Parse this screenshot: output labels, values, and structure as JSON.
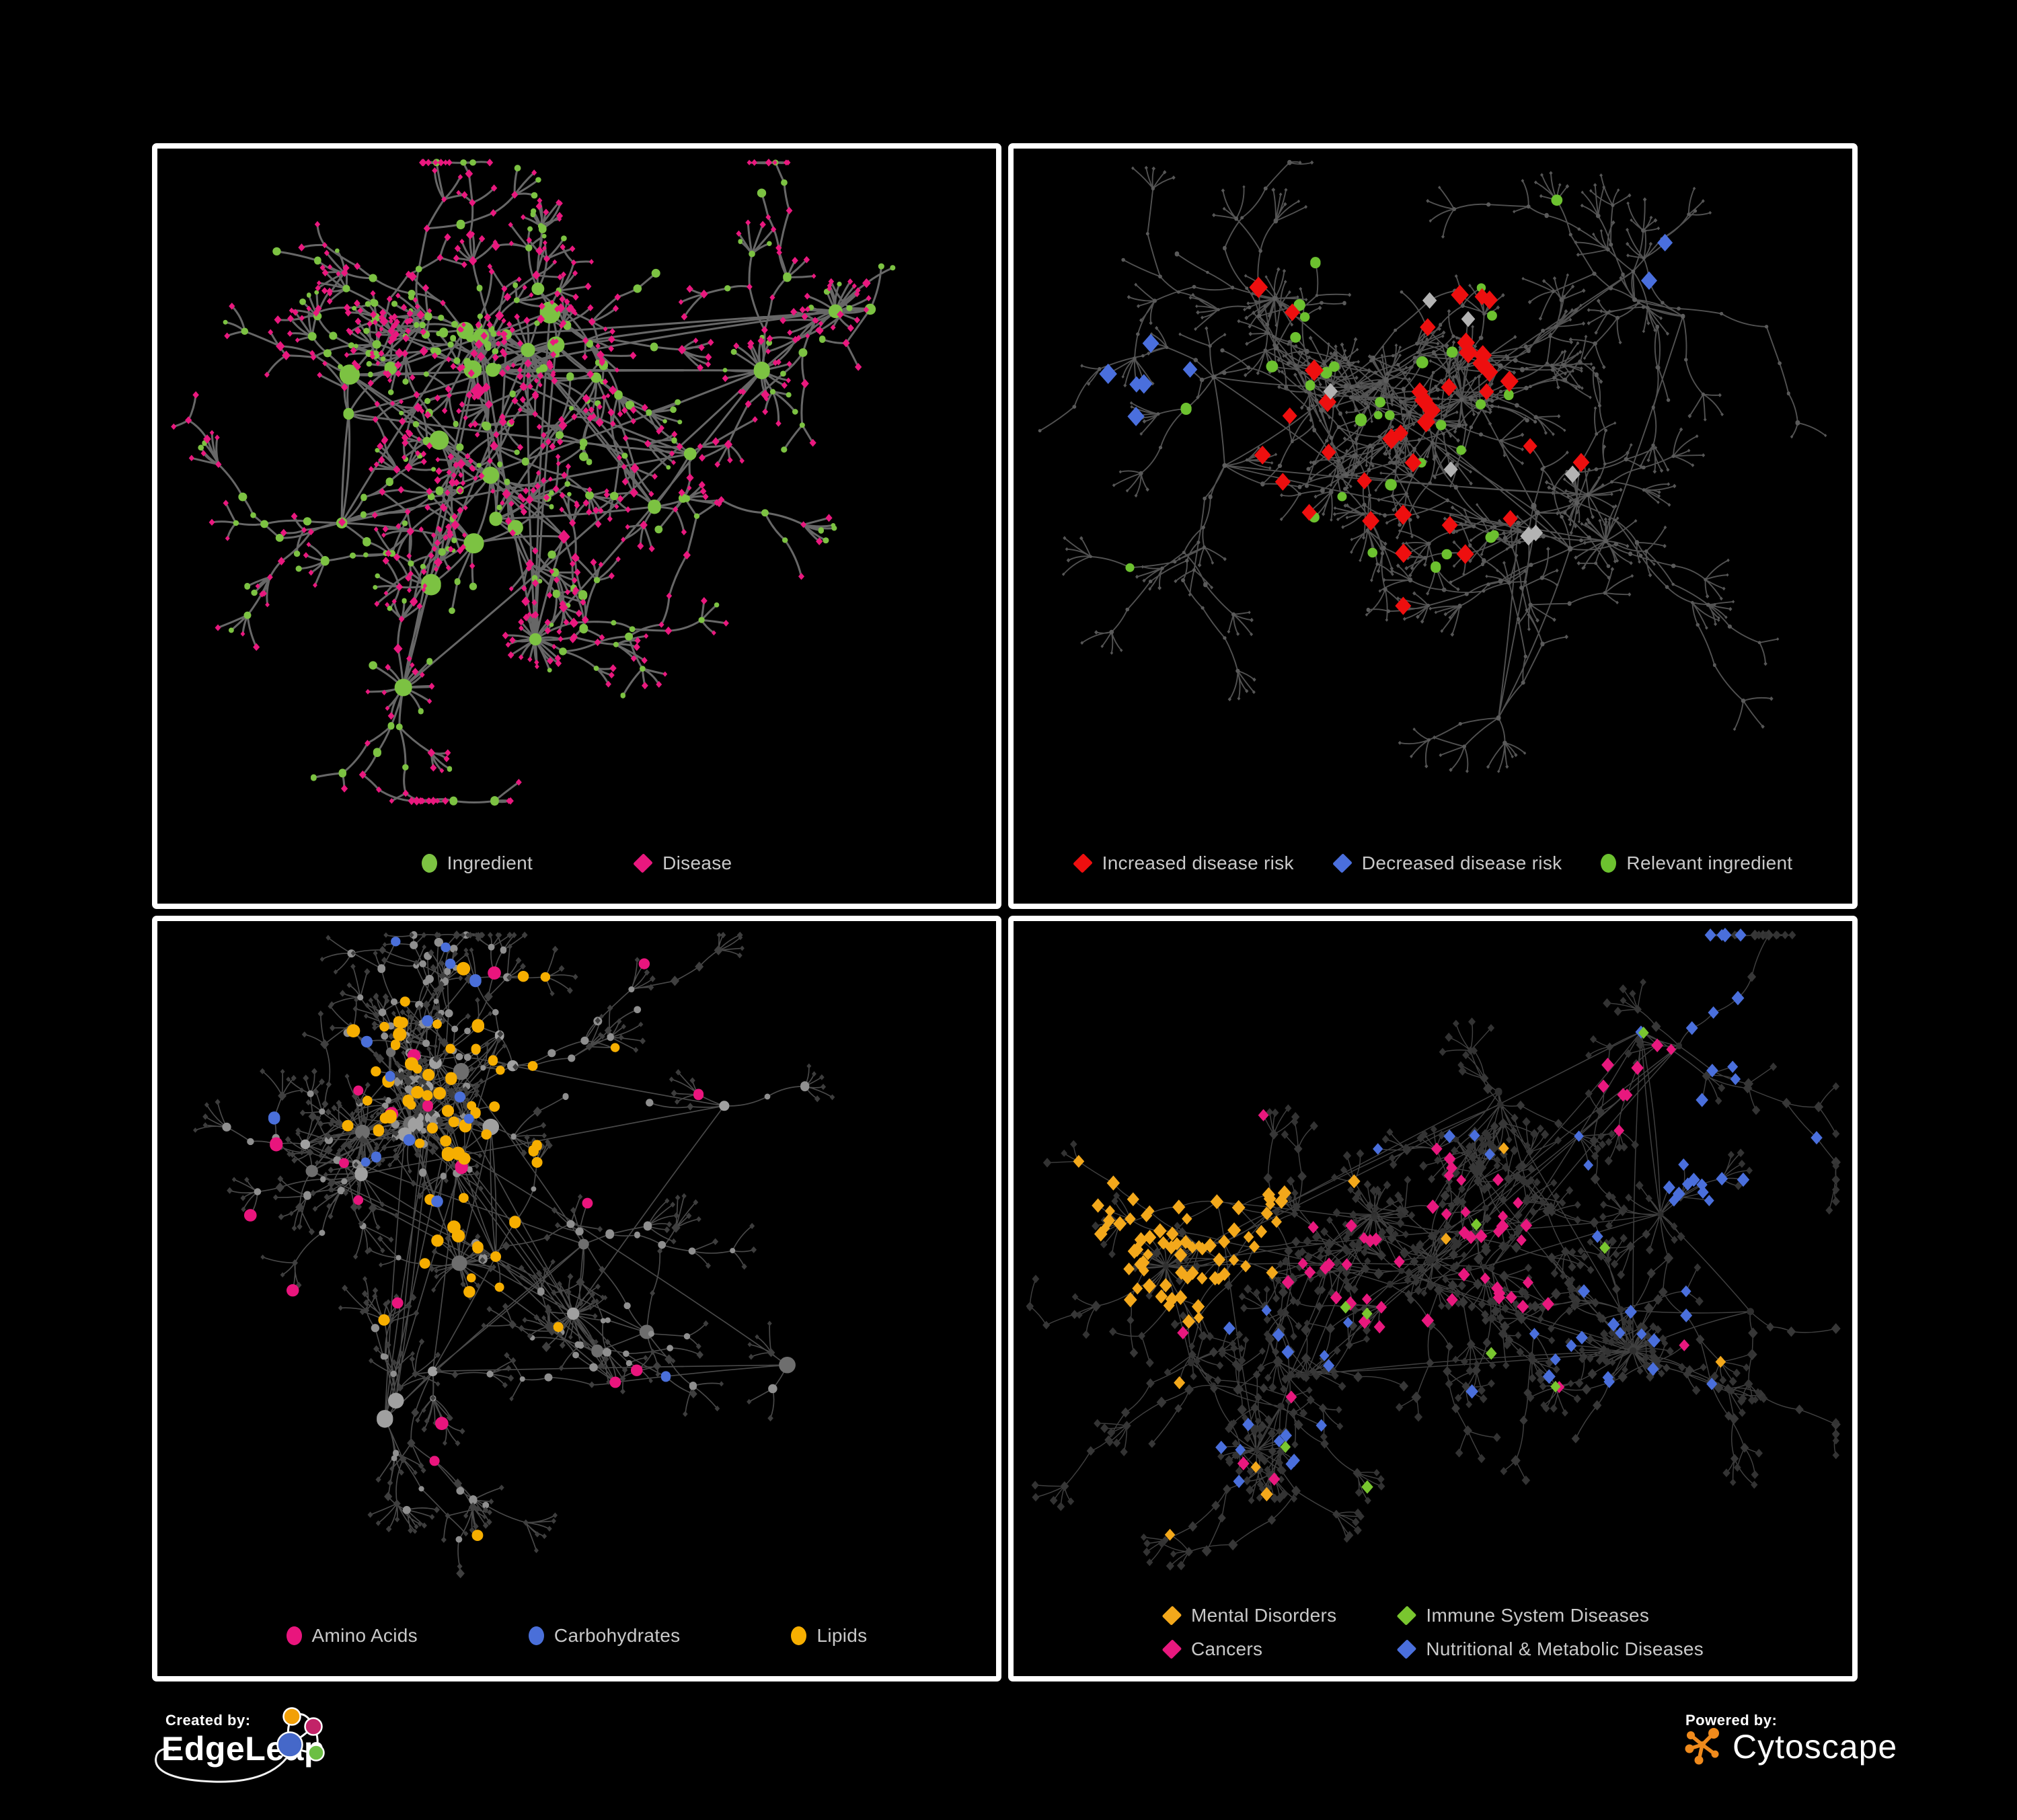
{
  "figure": {
    "background": "#000000",
    "panel_border_color": "#ffffff",
    "legend_text_color": "#c9c9c9"
  },
  "footer": {
    "created_by": "Created by:",
    "created_brand": "EdgeLeap",
    "powered_by": "Powered by:",
    "powered_brand": "Cytoscape",
    "edgeleap_logo_colors": {
      "orange": "#f2a007",
      "magenta": "#c22368",
      "blue": "#4568c9",
      "green": "#6cbf44",
      "line": "#ffffff"
    },
    "cytoscape_logo_color": "#ef8a1c"
  },
  "panels": [
    {
      "id": "ingredient-disease",
      "legend_layout": "row",
      "legend": [
        {
          "label": "Ingredient",
          "shape": "circle",
          "color": "#7cc242"
        },
        {
          "label": "Disease",
          "shape": "diamond",
          "color": "#e9187e"
        }
      ],
      "network": {
        "seed": 14,
        "hubs": 30,
        "hubSpread": 120,
        "extraEdges": 34,
        "branchMin": 2,
        "branchMax": 4,
        "leafMax": 5,
        "stars": 5,
        "foci": [
          [
            0.3,
            0.36,
            3
          ],
          [
            0.46,
            0.3,
            3
          ],
          [
            0.38,
            0.58,
            2
          ],
          [
            0.6,
            0.48,
            1.5
          ],
          [
            0.78,
            0.24,
            1.5
          ],
          [
            0.4,
            0.8,
            1
          ],
          [
            0.18,
            0.6,
            1
          ]
        ],
        "size": {
          "hub": [
            6,
            12
          ],
          "mid": [
            3.5,
            6
          ],
          "leaf": [
            3,
            4.6
          ]
        },
        "base": {
          "hub": [
            [
              "circle",
              "#7cc242",
              0.8,
              1.15
            ],
            [
              "diamond",
              "#e9187e",
              0.2,
              0.9
            ]
          ],
          "mid": [
            [
              "circle",
              "#7cc242",
              0.45,
              1
            ],
            [
              "diamond",
              "#e9187e",
              0.55,
              1
            ]
          ],
          "leaf": [
            [
              "diamond",
              "#e9187e",
              0.82,
              1
            ],
            [
              "circle",
              "#7cc242",
              0.18,
              0.95
            ]
          ]
        },
        "edge": {
          "color": "#6d6d6d",
          "width": 2.7,
          "opacity": 0.95
        },
        "rules": []
      }
    },
    {
      "id": "disease-risk",
      "legend_layout": "row",
      "legend": [
        {
          "label": "Increased disease risk",
          "shape": "diamond",
          "color": "#ee0f0f"
        },
        {
          "label": "Decreased disease risk",
          "shape": "diamond",
          "color": "#4a6fdd"
        },
        {
          "label": "Relevant ingredient",
          "shape": "circle",
          "color": "#6cc12f"
        }
      ],
      "network": {
        "seed": 47,
        "hubs": 30,
        "hubSpread": 130,
        "extraEdges": 14,
        "branchMin": 2,
        "branchMax": 4,
        "leafMax": 5,
        "stars": 7,
        "foci": [
          [
            0.4,
            0.38,
            3
          ],
          [
            0.52,
            0.3,
            2
          ],
          [
            0.3,
            0.55,
            1.5
          ],
          [
            0.65,
            0.55,
            1.5
          ],
          [
            0.8,
            0.25,
            1
          ],
          [
            0.25,
            0.25,
            1.5
          ],
          [
            0.55,
            0.75,
            1
          ]
        ],
        "size": {
          "hub": [
            2.6,
            3.6
          ],
          "mid": [
            2.0,
            3.0
          ],
          "leaf": [
            1.9,
            2.6
          ]
        },
        "base": {
          "hub": [
            [
              "circle",
              "#5e5e5e",
              1,
              1
            ]
          ],
          "mid": [
            [
              "circle",
              "#5a5a5a",
              1,
              1
            ]
          ],
          "leaf": [
            [
              "diamond",
              "#565656",
              1,
              1
            ]
          ]
        },
        "edge": {
          "color": "#555555",
          "width": 1.7,
          "opacity": 0.95
        },
        "rules": [
          {
            "shape": "diamond",
            "color": "#ee0f0f",
            "size": [
              9.5,
              13
            ],
            "count": 30,
            "focus": [
              0.44,
              0.4
            ],
            "radius": 250
          },
          {
            "shape": "diamond",
            "color": "#ee0f0f",
            "size": [
              9,
              11.5
            ],
            "count": 6,
            "focus": [
              0.62,
              0.62
            ],
            "radius": 320
          },
          {
            "shape": "diamond",
            "color": "#ee0f0f",
            "size": [
              9,
              11
            ],
            "count": 2,
            "focus": [
              0.5,
              0.17
            ],
            "radius": 140
          },
          {
            "shape": "diamond",
            "color": "#4a6fdd",
            "size": [
              9.5,
              12
            ],
            "count": 4,
            "focus": [
              0.135,
              0.33
            ],
            "radius": 90
          },
          {
            "shape": "diamond",
            "color": "#4a6fdd",
            "size": [
              10,
              11
            ],
            "count": 2,
            "focus": [
              0.8,
              0.165
            ],
            "radius": 55
          },
          {
            "shape": "diamond",
            "color": "#4a6fdd",
            "size": [
              9,
              10
            ],
            "count": 2,
            "focus": [
              0.22,
              0.4
            ],
            "radius": 110
          },
          {
            "shape": "diamond",
            "color": "#b3b3b3",
            "size": [
              9,
              11
            ],
            "count": 7,
            "focus": [
              0.42,
              0.47
            ],
            "radius": 300
          },
          {
            "shape": "circle",
            "color": "#6cc12f",
            "size": [
              6,
              8
            ],
            "count": 24,
            "focus": [
              0.4,
              0.4
            ],
            "radius": 260
          },
          {
            "shape": "circle",
            "color": "#6cc12f",
            "size": [
              5.5,
              7.5
            ],
            "count": 8,
            "focus": [
              0.5,
              0.5
            ],
            "radius": 600
          }
        ]
      }
    },
    {
      "id": "nutrient-groups",
      "legend_layout": "row",
      "legend": [
        {
          "label": "Amino Acids",
          "shape": "circle",
          "color": "#e9157d"
        },
        {
          "label": "Carbohydrates",
          "shape": "circle",
          "color": "#4a6fd9"
        },
        {
          "label": "Lipids",
          "shape": "circle",
          "color": "#f6ae00"
        }
      ],
      "network": {
        "seed": 83,
        "hubs": 30,
        "hubSpread": 120,
        "extraEdges": 44,
        "branchMin": 2,
        "branchMax": 4,
        "leafMax": 5,
        "stars": 7,
        "foci": [
          [
            0.27,
            0.33,
            3
          ],
          [
            0.36,
            0.22,
            2.5
          ],
          [
            0.42,
            0.5,
            2
          ],
          [
            0.55,
            0.62,
            1.5
          ],
          [
            0.7,
            0.3,
            1.5
          ],
          [
            0.35,
            0.78,
            1
          ],
          [
            0.75,
            0.65,
            1
          ]
        ],
        "size": {
          "hub": [
            6,
            11
          ],
          "mid": [
            3.5,
            6
          ],
          "leaf": [
            2.9,
            4.1
          ]
        },
        "base": {
          "hub": [
            [
              "circle",
              "#a0a0a0",
              0.6,
              1
            ],
            [
              "circle",
              "#6e6e6e",
              0.4,
              1
            ]
          ],
          "mid": [
            [
              "circle",
              "#8f8f8f",
              0.55,
              1
            ],
            [
              "diamond",
              "#3f3f3f",
              0.45,
              1
            ]
          ],
          "leaf": [
            [
              "diamond",
              "#3d3d3d",
              1,
              1
            ]
          ]
        },
        "edge": {
          "color": "#7a7a7a",
          "width": 1.5,
          "opacity": 0.6
        },
        "rules": [
          {
            "shape": "circle",
            "color": "#f6ae00",
            "size": [
              6,
              9
            ],
            "count": 36,
            "focus": [
              0.345,
              0.235
            ],
            "radius": 150
          },
          {
            "shape": "circle",
            "color": "#f6ae00",
            "size": [
              6,
              9
            ],
            "count": 16,
            "focus": [
              0.385,
              0.445
            ],
            "radius": 105
          },
          {
            "shape": "circle",
            "color": "#f6ae00",
            "size": [
              6,
              8.5
            ],
            "count": 14,
            "focus": [
              0.5,
              0.55
            ],
            "radius": 600
          },
          {
            "shape": "circle",
            "color": "#4a6fd9",
            "size": [
              6,
              8
            ],
            "count": 10,
            "focus": [
              0.3,
              0.175
            ],
            "radius": 140
          },
          {
            "shape": "circle",
            "color": "#4a6fd9",
            "size": [
              6,
              8
            ],
            "count": 5,
            "focus": [
              0.55,
              0.5
            ],
            "radius": 550
          },
          {
            "shape": "circle",
            "color": "#e9157d",
            "size": [
              6.5,
              9
            ],
            "count": 16,
            "focus": [
              0.5,
              0.62
            ],
            "radius": 520
          },
          {
            "shape": "circle",
            "color": "#e9157d",
            "size": [
              6.5,
              9
            ],
            "count": 3,
            "focus": [
              0.12,
              0.42
            ],
            "radius": 160
          }
        ]
      }
    },
    {
      "id": "disease-classes",
      "legend_layout": "grid",
      "legend": [
        {
          "label": "Mental Disorders",
          "shape": "diamond",
          "color": "#f3a81b"
        },
        {
          "label": "Immune System Diseases",
          "shape": "diamond",
          "color": "#79c62f"
        },
        {
          "label": "Cancers",
          "shape": "diamond",
          "color": "#e8187e"
        },
        {
          "label": "Nutritional & Metabolic Diseases",
          "shape": "diamond",
          "color": "#4a6fdc"
        }
      ],
      "network": {
        "seed": 29,
        "hubs": 30,
        "hubSpread": 125,
        "extraEdges": 30,
        "branchMin": 2,
        "branchMax": 4,
        "leafMax": 5,
        "stars": 7,
        "foci": [
          [
            0.22,
            0.44,
            3
          ],
          [
            0.48,
            0.5,
            2.5
          ],
          [
            0.6,
            0.3,
            2
          ],
          [
            0.78,
            0.55,
            1.5
          ],
          [
            0.3,
            0.72,
            1.5
          ],
          [
            0.8,
            0.12,
            1
          ],
          [
            0.6,
            0.8,
            1
          ]
        ],
        "size": {
          "hub": [
            3.6,
            5
          ],
          "mid": [
            4.8,
            6.6
          ],
          "leaf": [
            4.2,
            5.6
          ]
        },
        "base": {
          "hub": [
            [
              "circle",
              "#2f2f2f",
              1,
              1
            ]
          ],
          "mid": [
            [
              "diamond",
              "#373737",
              1,
              1
            ]
          ],
          "leaf": [
            [
              "diamond",
              "#333333",
              1,
              1
            ]
          ]
        },
        "edge": {
          "color": "#8d8d8d",
          "width": 1.3,
          "opacity": 0.45
        },
        "rules": [
          {
            "shape": "diamond",
            "color": "#f3a81b",
            "size": [
              6.5,
              9
            ],
            "count": 72,
            "focus": [
              0.185,
              0.44
            ],
            "radius": 155
          },
          {
            "shape": "diamond",
            "color": "#f3a81b",
            "size": [
              6.5,
              9
            ],
            "count": 14,
            "focus": [
              0.33,
              0.065
            ],
            "radius": 105
          },
          {
            "shape": "diamond",
            "color": "#f3a81b",
            "size": [
              6.5,
              8.5
            ],
            "count": 8,
            "focus": [
              0.5,
              0.8
            ],
            "radius": 450
          },
          {
            "shape": "diamond",
            "color": "#e8187e",
            "size": [
              6.5,
              8.5
            ],
            "count": 44,
            "focus": [
              0.47,
              0.51
            ],
            "radius": 165
          },
          {
            "shape": "diamond",
            "color": "#e8187e",
            "size": [
              6.5,
              8.5
            ],
            "count": 8,
            "focus": [
              0.76,
              0.26
            ],
            "radius": 70
          },
          {
            "shape": "diamond",
            "color": "#e8187e",
            "size": [
              6.5,
              8.5
            ],
            "count": 10,
            "focus": [
              0.5,
              0.35
            ],
            "radius": 500
          },
          {
            "shape": "diamond",
            "color": "#4a6fdc",
            "size": [
              6.5,
              8.5
            ],
            "count": 16,
            "focus": [
              0.72,
              0.62
            ],
            "radius": 110
          },
          {
            "shape": "diamond",
            "color": "#4a6fdc",
            "size": [
              6.5,
              8.5
            ],
            "count": 16,
            "focus": [
              0.86,
              0.33
            ],
            "radius": 120
          },
          {
            "shape": "diamond",
            "color": "#4a6fdc",
            "size": [
              6.5,
              8.5
            ],
            "count": 10,
            "focus": [
              0.315,
              0.75
            ],
            "radius": 100
          },
          {
            "shape": "diamond",
            "color": "#4a6fdc",
            "size": [
              6.5,
              8.5
            ],
            "count": 8,
            "focus": [
              0.84,
              0.1
            ],
            "radius": 85
          },
          {
            "shape": "diamond",
            "color": "#4a6fdc",
            "size": [
              6.5,
              8.5
            ],
            "count": 16,
            "focus": [
              0.55,
              0.45
            ],
            "radius": 600
          },
          {
            "shape": "diamond",
            "color": "#79c62f",
            "size": [
              6.5,
              8
            ],
            "count": 9,
            "focus": [
              0.45,
              0.35
            ],
            "radius": 450
          }
        ]
      }
    }
  ]
}
